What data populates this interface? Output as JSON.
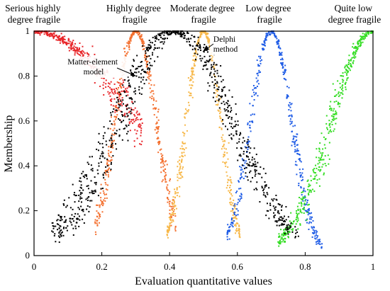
{
  "chart_data": {
    "type": "scatter",
    "xlabel": "Evaluation quantitative values",
    "ylabel": "Membership",
    "xlim": [
      0,
      1
    ],
    "ylim": [
      0,
      1
    ],
    "xticks": [
      "0",
      "0.2",
      "0.4",
      "0.6",
      "0.8",
      "1"
    ],
    "yticks": [
      "0",
      "0.2",
      "0.4",
      "0.6",
      "0.8",
      "1"
    ],
    "grid": false,
    "series": [
      {
        "name": "Serious highly degree fragile",
        "color": "#e8262a",
        "center": 0.0,
        "width": 0.3,
        "shape": "gaussian",
        "x_range": [
          0.0,
          0.32
        ]
      },
      {
        "name": "Highly degree fragile",
        "color": "#f4702f",
        "center": 0.3,
        "width": 0.06,
        "shape": "gaussian",
        "x_range": [
          0.18,
          0.42
        ]
      },
      {
        "name": "Moderate degree fragile",
        "color": "#f7b84a",
        "center": 0.5,
        "width": 0.05,
        "shape": "gaussian",
        "x_range": [
          0.39,
          0.61
        ]
      },
      {
        "name": "Low degree fragile",
        "color": "#1f5ce6",
        "center": 0.7,
        "width": 0.06,
        "shape": "gaussian",
        "x_range": [
          0.57,
          0.85
        ]
      },
      {
        "name": "Quite low degree fragile",
        "color": "#33dd22",
        "center": 1.0,
        "width": 0.12,
        "shape": "gaussian",
        "x_range": [
          0.72,
          1.0
        ]
      },
      {
        "name": "Matter-element model",
        "color": "#000000",
        "center": 0.405,
        "width": 0.17,
        "shape": "gaussian",
        "x_range": [
          0.05,
          0.75
        ]
      },
      {
        "name": "Delphi method",
        "color": "#000000",
        "center": 0.43,
        "width": 0.16,
        "shape": "gaussian",
        "x_range": [
          0.06,
          0.78
        ]
      }
    ],
    "annotations": [
      {
        "text": [
          "Serious highly",
          "degree fragile"
        ]
      },
      {
        "text": [
          "Highly degree",
          "fragile"
        ]
      },
      {
        "text": [
          "Moderate degree",
          "fragile"
        ]
      },
      {
        "text": [
          "Low degree",
          "fragile"
        ]
      },
      {
        "text": [
          "Quite low",
          "degree fragile"
        ]
      },
      {
        "text": [
          "Matter-element",
          "model"
        ]
      },
      {
        "text": [
          "Delphi",
          "method"
        ]
      }
    ]
  }
}
